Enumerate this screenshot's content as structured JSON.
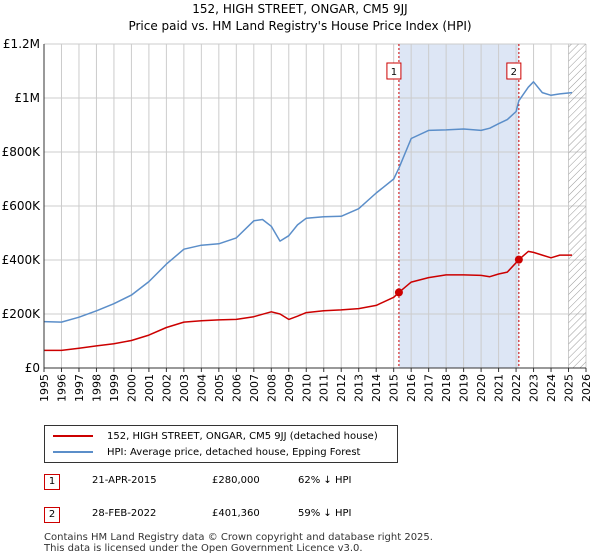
{
  "header": {
    "title": "152, HIGH STREET, ONGAR, CM5 9JJ",
    "subtitle": "Price paid vs. HM Land Registry's House Price Index (HPI)"
  },
  "legend": {
    "property_label": "152, HIGH STREET, ONGAR, CM5 9JJ (detached house)",
    "hpi_label": "HPI: Average price, detached house, Epping Forest"
  },
  "transactions": [
    {
      "marker": "1",
      "date": "21-APR-2015",
      "price": "£280,000",
      "hpi_diff": "62% ↓ HPI"
    },
    {
      "marker": "2",
      "date": "28-FEB-2022",
      "price": "£401,360",
      "hpi_diff": "59% ↓ HPI"
    }
  ],
  "footer": {
    "line1": "Contains HM Land Registry data © Crown copyright and database right 2025.",
    "line2": "This data is licensed under the Open Government Licence v3.0."
  },
  "colors": {
    "property": "#cc0000",
    "hpi": "#5b8ec9",
    "shade": "#dde6f5",
    "grid": "#cccccc"
  },
  "chart_data": {
    "type": "line",
    "title": "152, HIGH STREET, ONGAR, CM5 9JJ",
    "subtitle": "Price paid vs. HM Land Registry's House Price Index (HPI)",
    "xlabel": "",
    "ylabel": "",
    "xlim": [
      1995,
      2026
    ],
    "ylim": [
      0,
      1200000
    ],
    "x_ticks": [
      1995,
      1996,
      1997,
      1998,
      1999,
      2000,
      2001,
      2002,
      2003,
      2004,
      2005,
      2006,
      2007,
      2008,
      2009,
      2010,
      2011,
      2012,
      2013,
      2014,
      2015,
      2016,
      2017,
      2018,
      2019,
      2020,
      2021,
      2022,
      2023,
      2024,
      2025,
      2026
    ],
    "y_ticks": [
      {
        "value": 0,
        "label": "£0"
      },
      {
        "value": 200000,
        "label": "£200K"
      },
      {
        "value": 400000,
        "label": "£400K"
      },
      {
        "value": 600000,
        "label": "£600K"
      },
      {
        "value": 800000,
        "label": "£800K"
      },
      {
        "value": 1000000,
        "label": "£1M"
      },
      {
        "value": 1200000,
        "label": "£1.2M"
      }
    ],
    "grid": true,
    "shaded_range": [
      2015.3,
      2022.16
    ],
    "hatched_after": 2025.0,
    "annotations": [
      {
        "label": "1",
        "x": 2015.3
      },
      {
        "label": "2",
        "x": 2022.16
      }
    ],
    "sale_points": [
      {
        "label": "1",
        "x": 2015.3,
        "y": 280000
      },
      {
        "label": "2",
        "x": 2022.16,
        "y": 401360
      }
    ],
    "series": [
      {
        "name": "152, HIGH STREET, ONGAR, CM5 9JJ (detached house)",
        "color": "#cc0000",
        "x": [
          1995,
          1996,
          1997,
          1998,
          1999,
          2000,
          2001,
          2002,
          2003,
          2004,
          2005,
          2006,
          2007,
          2008,
          2008.5,
          2009,
          2009.5,
          2010,
          2011,
          2012,
          2013,
          2014,
          2015,
          2015.3,
          2016,
          2017,
          2018,
          2019,
          2020,
          2020.5,
          2021,
          2021.5,
          2022,
          2022.16,
          2022.7,
          2023,
          2023.5,
          2024,
          2024.5,
          2025.2
        ],
        "y": [
          65000,
          65000,
          73000,
          82000,
          90000,
          102000,
          122000,
          150000,
          170000,
          175000,
          178000,
          180000,
          190000,
          208000,
          200000,
          180000,
          192000,
          205000,
          212000,
          215000,
          220000,
          232000,
          262000,
          280000,
          318000,
          335000,
          345000,
          345000,
          343000,
          338000,
          348000,
          355000,
          390000,
          401360,
          432000,
          428000,
          418000,
          408000,
          418000,
          418000
        ]
      },
      {
        "name": "HPI: Average price, detached house, Epping Forest",
        "color": "#5b8ec9",
        "x": [
          1995,
          1996,
          1997,
          1998,
          1999,
          2000,
          2001,
          2002,
          2003,
          2004,
          2005,
          2006,
          2007,
          2007.5,
          2008,
          2008.5,
          2009,
          2009.5,
          2010,
          2011,
          2012,
          2013,
          2014,
          2015,
          2015.3,
          2016,
          2017,
          2018,
          2019,
          2020,
          2020.5,
          2021,
          2021.5,
          2022,
          2022.16,
          2022.7,
          2023,
          2023.5,
          2024,
          2024.5,
          2025.2
        ],
        "y": [
          172000,
          170000,
          188000,
          212000,
          238000,
          270000,
          320000,
          385000,
          440000,
          455000,
          460000,
          482000,
          545000,
          550000,
          525000,
          470000,
          490000,
          530000,
          555000,
          560000,
          562000,
          590000,
          648000,
          700000,
          740000,
          850000,
          880000,
          882000,
          885000,
          880000,
          888000,
          905000,
          920000,
          950000,
          990000,
          1040000,
          1060000,
          1020000,
          1010000,
          1015000,
          1020000
        ]
      }
    ]
  }
}
